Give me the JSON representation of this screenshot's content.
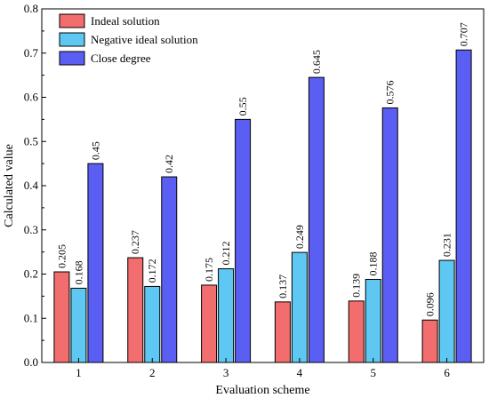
{
  "chart_data": {
    "type": "bar",
    "xlabel": "Evaluation scheme",
    "ylabel": "Calculated value",
    "ylim": [
      0,
      0.8
    ],
    "yticks": [
      "0.0",
      "0.1",
      "0.2",
      "0.3",
      "0.4",
      "0.5",
      "0.6",
      "0.7",
      "0.8"
    ],
    "categories": [
      "1",
      "2",
      "3",
      "4",
      "5",
      "6"
    ],
    "legend_position": "top-left",
    "series": [
      {
        "name": "Indeal solution",
        "color": "#f26d6d",
        "values": [
          0.205,
          0.237,
          0.175,
          0.137,
          0.139,
          0.096
        ],
        "labels": [
          "0.205",
          "0.237",
          "0.175",
          "0.137",
          "0.139",
          "0.096"
        ]
      },
      {
        "name": "Negative ideal solution",
        "color": "#5ec8f2",
        "values": [
          0.168,
          0.172,
          0.212,
          0.249,
          0.188,
          0.231
        ],
        "labels": [
          "0.168",
          "0.172",
          "0.212",
          "0.249",
          "0.188",
          "0.231"
        ]
      },
      {
        "name": "Close degree",
        "color": "#5a5ef2",
        "values": [
          0.45,
          0.42,
          0.55,
          0.645,
          0.576,
          0.707
        ],
        "labels": [
          "0.45",
          "0.42",
          "0.55",
          "0.645",
          "0.576",
          "0.707"
        ]
      }
    ]
  }
}
